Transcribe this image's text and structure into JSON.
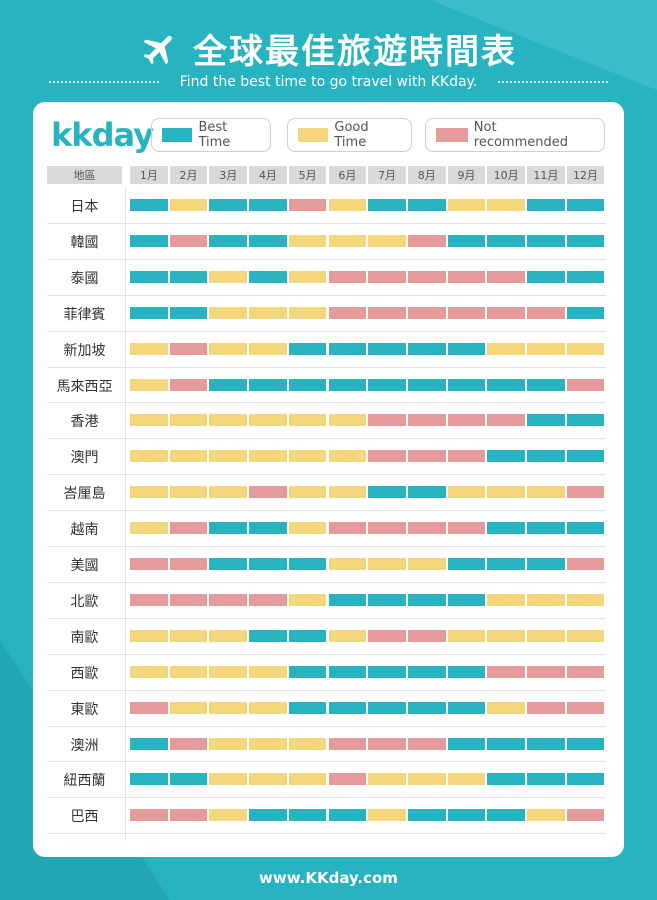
{
  "header": {
    "title": "全球最佳旅遊時間表",
    "subtitle": "Find the best time to go travel with KKday.",
    "logo_text": "kkday"
  },
  "legend": [
    {
      "label": "Best Time",
      "color": "#27b3c0"
    },
    {
      "label": "Good Time",
      "color": "#f4d77c"
    },
    {
      "label": "Not recommended",
      "color": "#e59a9c"
    }
  ],
  "footer": {
    "url": "www.KKday.com"
  },
  "colors": {
    "best": "#27b3c0",
    "good": "#f4d77c",
    "bad": "#e59a9c",
    "background": "#27b3c0"
  },
  "chart_data": {
    "type": "heatmap",
    "column_header": "地區",
    "months": [
      "1月",
      "2月",
      "3月",
      "4月",
      "5月",
      "6月",
      "7月",
      "8月",
      "9月",
      "10月",
      "11月",
      "12月"
    ],
    "value_codes": {
      "B": "Best Time",
      "G": "Good Time",
      "N": "Not recommended"
    },
    "rows": [
      {
        "region": "日本",
        "months": [
          "B",
          "G",
          "B",
          "B",
          "N",
          "G",
          "B",
          "B",
          "G",
          "G",
          "B",
          "B"
        ]
      },
      {
        "region": "韓國",
        "months": [
          "B",
          "N",
          "B",
          "B",
          "G",
          "G",
          "G",
          "N",
          "B",
          "B",
          "B",
          "B"
        ]
      },
      {
        "region": "泰國",
        "months": [
          "B",
          "B",
          "G",
          "B",
          "G",
          "N",
          "N",
          "N",
          "N",
          "N",
          "B",
          "B"
        ]
      },
      {
        "region": "菲律賓",
        "months": [
          "B",
          "B",
          "G",
          "G",
          "G",
          "N",
          "N",
          "N",
          "N",
          "N",
          "N",
          "B"
        ]
      },
      {
        "region": "新加坡",
        "months": [
          "G",
          "N",
          "G",
          "G",
          "B",
          "B",
          "B",
          "B",
          "B",
          "G",
          "G",
          "G"
        ]
      },
      {
        "region": "馬來西亞",
        "months": [
          "G",
          "N",
          "B",
          "B",
          "B",
          "B",
          "B",
          "B",
          "B",
          "B",
          "B",
          "N"
        ]
      },
      {
        "region": "香港",
        "months": [
          "G",
          "G",
          "G",
          "G",
          "G",
          "G",
          "N",
          "N",
          "N",
          "N",
          "B",
          "B"
        ]
      },
      {
        "region": "澳門",
        "months": [
          "G",
          "G",
          "G",
          "G",
          "G",
          "G",
          "N",
          "N",
          "N",
          "B",
          "B",
          "B"
        ]
      },
      {
        "region": "峇厘島",
        "months": [
          "G",
          "G",
          "G",
          "N",
          "G",
          "G",
          "B",
          "B",
          "G",
          "G",
          "G",
          "N"
        ]
      },
      {
        "region": "越南",
        "months": [
          "G",
          "N",
          "B",
          "B",
          "G",
          "N",
          "N",
          "N",
          "N",
          "B",
          "B",
          "B"
        ]
      },
      {
        "region": "美國",
        "months": [
          "N",
          "N",
          "B",
          "B",
          "B",
          "G",
          "G",
          "G",
          "B",
          "B",
          "B",
          "N"
        ]
      },
      {
        "region": "北歐",
        "months": [
          "N",
          "N",
          "N",
          "N",
          "G",
          "B",
          "B",
          "B",
          "B",
          "G",
          "G",
          "G"
        ]
      },
      {
        "region": "南歐",
        "months": [
          "G",
          "G",
          "G",
          "B",
          "B",
          "G",
          "N",
          "N",
          "G",
          "G",
          "G",
          "G"
        ]
      },
      {
        "region": "西歐",
        "months": [
          "G",
          "G",
          "G",
          "G",
          "B",
          "B",
          "B",
          "B",
          "B",
          "N",
          "N",
          "N"
        ]
      },
      {
        "region": "東歐",
        "months": [
          "N",
          "G",
          "G",
          "G",
          "B",
          "B",
          "B",
          "B",
          "B",
          "G",
          "N",
          "N"
        ]
      },
      {
        "region": "澳洲",
        "months": [
          "B",
          "N",
          "G",
          "G",
          "G",
          "N",
          "N",
          "N",
          "B",
          "B",
          "B",
          "B"
        ]
      },
      {
        "region": "紐西蘭",
        "months": [
          "B",
          "B",
          "G",
          "G",
          "G",
          "N",
          "G",
          "G",
          "G",
          "B",
          "B",
          "B"
        ]
      },
      {
        "region": "巴西",
        "months": [
          "N",
          "N",
          "G",
          "B",
          "B",
          "B",
          "G",
          "B",
          "B",
          "B",
          "G",
          "N"
        ]
      }
    ]
  }
}
